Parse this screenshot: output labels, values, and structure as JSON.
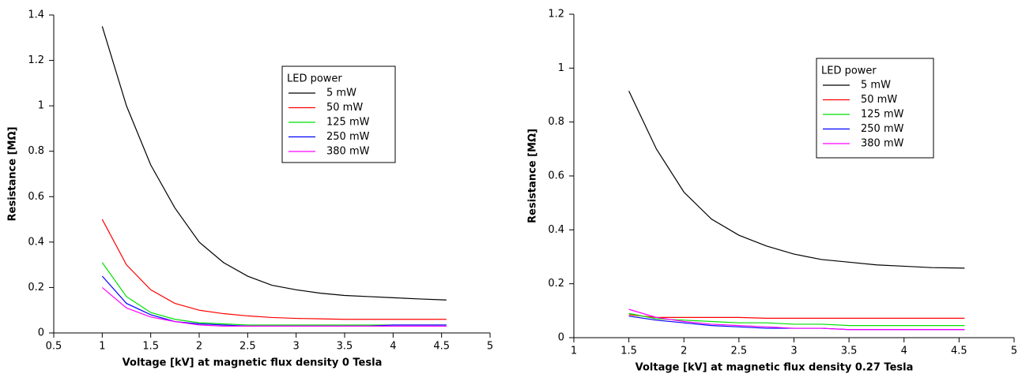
{
  "chart_data": [
    {
      "type": "line",
      "x_label": "Voltage [kV] at magnetic flux density 0 Tesla",
      "y_label": "Resistance [MΩ]",
      "legend_title": "LED power",
      "x": [
        1,
        1.25,
        1.5,
        1.75,
        2,
        2.25,
        2.5,
        2.75,
        3,
        3.25,
        3.5,
        3.75,
        4,
        4.25,
        4.55
      ],
      "series": [
        {
          "name": "5 mW",
          "color": "#000000",
          "values": [
            1.35,
            1.0,
            0.74,
            0.55,
            0.4,
            0.31,
            0.25,
            0.21,
            0.19,
            0.175,
            0.165,
            0.16,
            0.155,
            0.15,
            0.145
          ]
        },
        {
          "name": "50 mW",
          "color": "#ff0000",
          "values": [
            0.5,
            0.3,
            0.19,
            0.13,
            0.1,
            0.085,
            0.075,
            0.068,
            0.064,
            0.062,
            0.06,
            0.06,
            0.06,
            0.06,
            0.06
          ]
        },
        {
          "name": "125 mW",
          "color": "#00e000",
          "values": [
            0.31,
            0.16,
            0.09,
            0.06,
            0.045,
            0.04,
            0.035,
            0.035,
            0.035,
            0.035,
            0.035,
            0.035,
            0.035,
            0.035,
            0.035
          ]
        },
        {
          "name": "250 mW",
          "color": "#0000ff",
          "values": [
            0.25,
            0.13,
            0.08,
            0.05,
            0.04,
            0.035,
            0.03,
            0.03,
            0.03,
            0.03,
            0.03,
            0.03,
            0.035,
            0.035,
            0.035
          ]
        },
        {
          "name": "380 mW",
          "color": "#ff00ff",
          "values": [
            0.2,
            0.11,
            0.07,
            0.05,
            0.035,
            0.03,
            0.03,
            0.03,
            0.03,
            0.03,
            0.03,
            0.03,
            0.03,
            0.03,
            0.03
          ]
        }
      ],
      "xlim": [
        0.5,
        5
      ],
      "xticks": [
        0.5,
        1,
        1.5,
        2,
        2.5,
        3,
        3.5,
        4,
        4.5,
        5
      ],
      "ylim": [
        0,
        1.4
      ],
      "yticks": [
        0,
        0.2,
        0.4,
        0.6,
        0.8,
        1,
        1.2,
        1.4
      ]
    },
    {
      "type": "line",
      "x_label": "Voltage [kV] at magnetic flux density 0.27 Tesla",
      "y_label": "Resistance [MΩ]",
      "legend_title": "LED power",
      "x": [
        1.5,
        1.75,
        2,
        2.25,
        2.5,
        2.75,
        3,
        3.25,
        3.5,
        3.75,
        4,
        4.25,
        4.55
      ],
      "series": [
        {
          "name": "5 mW",
          "color": "#000000",
          "values": [
            0.915,
            0.7,
            0.54,
            0.44,
            0.38,
            0.34,
            0.31,
            0.29,
            0.28,
            0.27,
            0.265,
            0.26,
            0.258
          ]
        },
        {
          "name": "50 mW",
          "color": "#ff0000",
          "values": [
            0.085,
            0.075,
            0.075,
            0.075,
            0.075,
            0.072,
            0.072,
            0.072,
            0.072,
            0.072,
            0.072,
            0.072,
            0.072
          ]
        },
        {
          "name": "125 mW",
          "color": "#00e000",
          "values": [
            0.09,
            0.07,
            0.065,
            0.06,
            0.055,
            0.055,
            0.05,
            0.05,
            0.045,
            0.045,
            0.045,
            0.045,
            0.045
          ]
        },
        {
          "name": "250 mW",
          "color": "#0000ff",
          "values": [
            0.08,
            0.065,
            0.055,
            0.045,
            0.04,
            0.035,
            0.035,
            0.035,
            0.03,
            0.03,
            0.03,
            0.03,
            0.03
          ]
        },
        {
          "name": "380 mW",
          "color": "#ff00ff",
          "values": [
            0.105,
            0.075,
            0.06,
            0.05,
            0.045,
            0.04,
            0.035,
            0.035,
            0.03,
            0.03,
            0.03,
            0.03,
            0.03
          ]
        }
      ],
      "xlim": [
        1,
        5
      ],
      "xticks": [
        1,
        1.5,
        2,
        2.5,
        3,
        3.5,
        4,
        4.5,
        5
      ],
      "ylim": [
        0,
        1.2
      ],
      "yticks": [
        0,
        0.2,
        0.4,
        0.6,
        0.8,
        1,
        1.2
      ]
    }
  ]
}
